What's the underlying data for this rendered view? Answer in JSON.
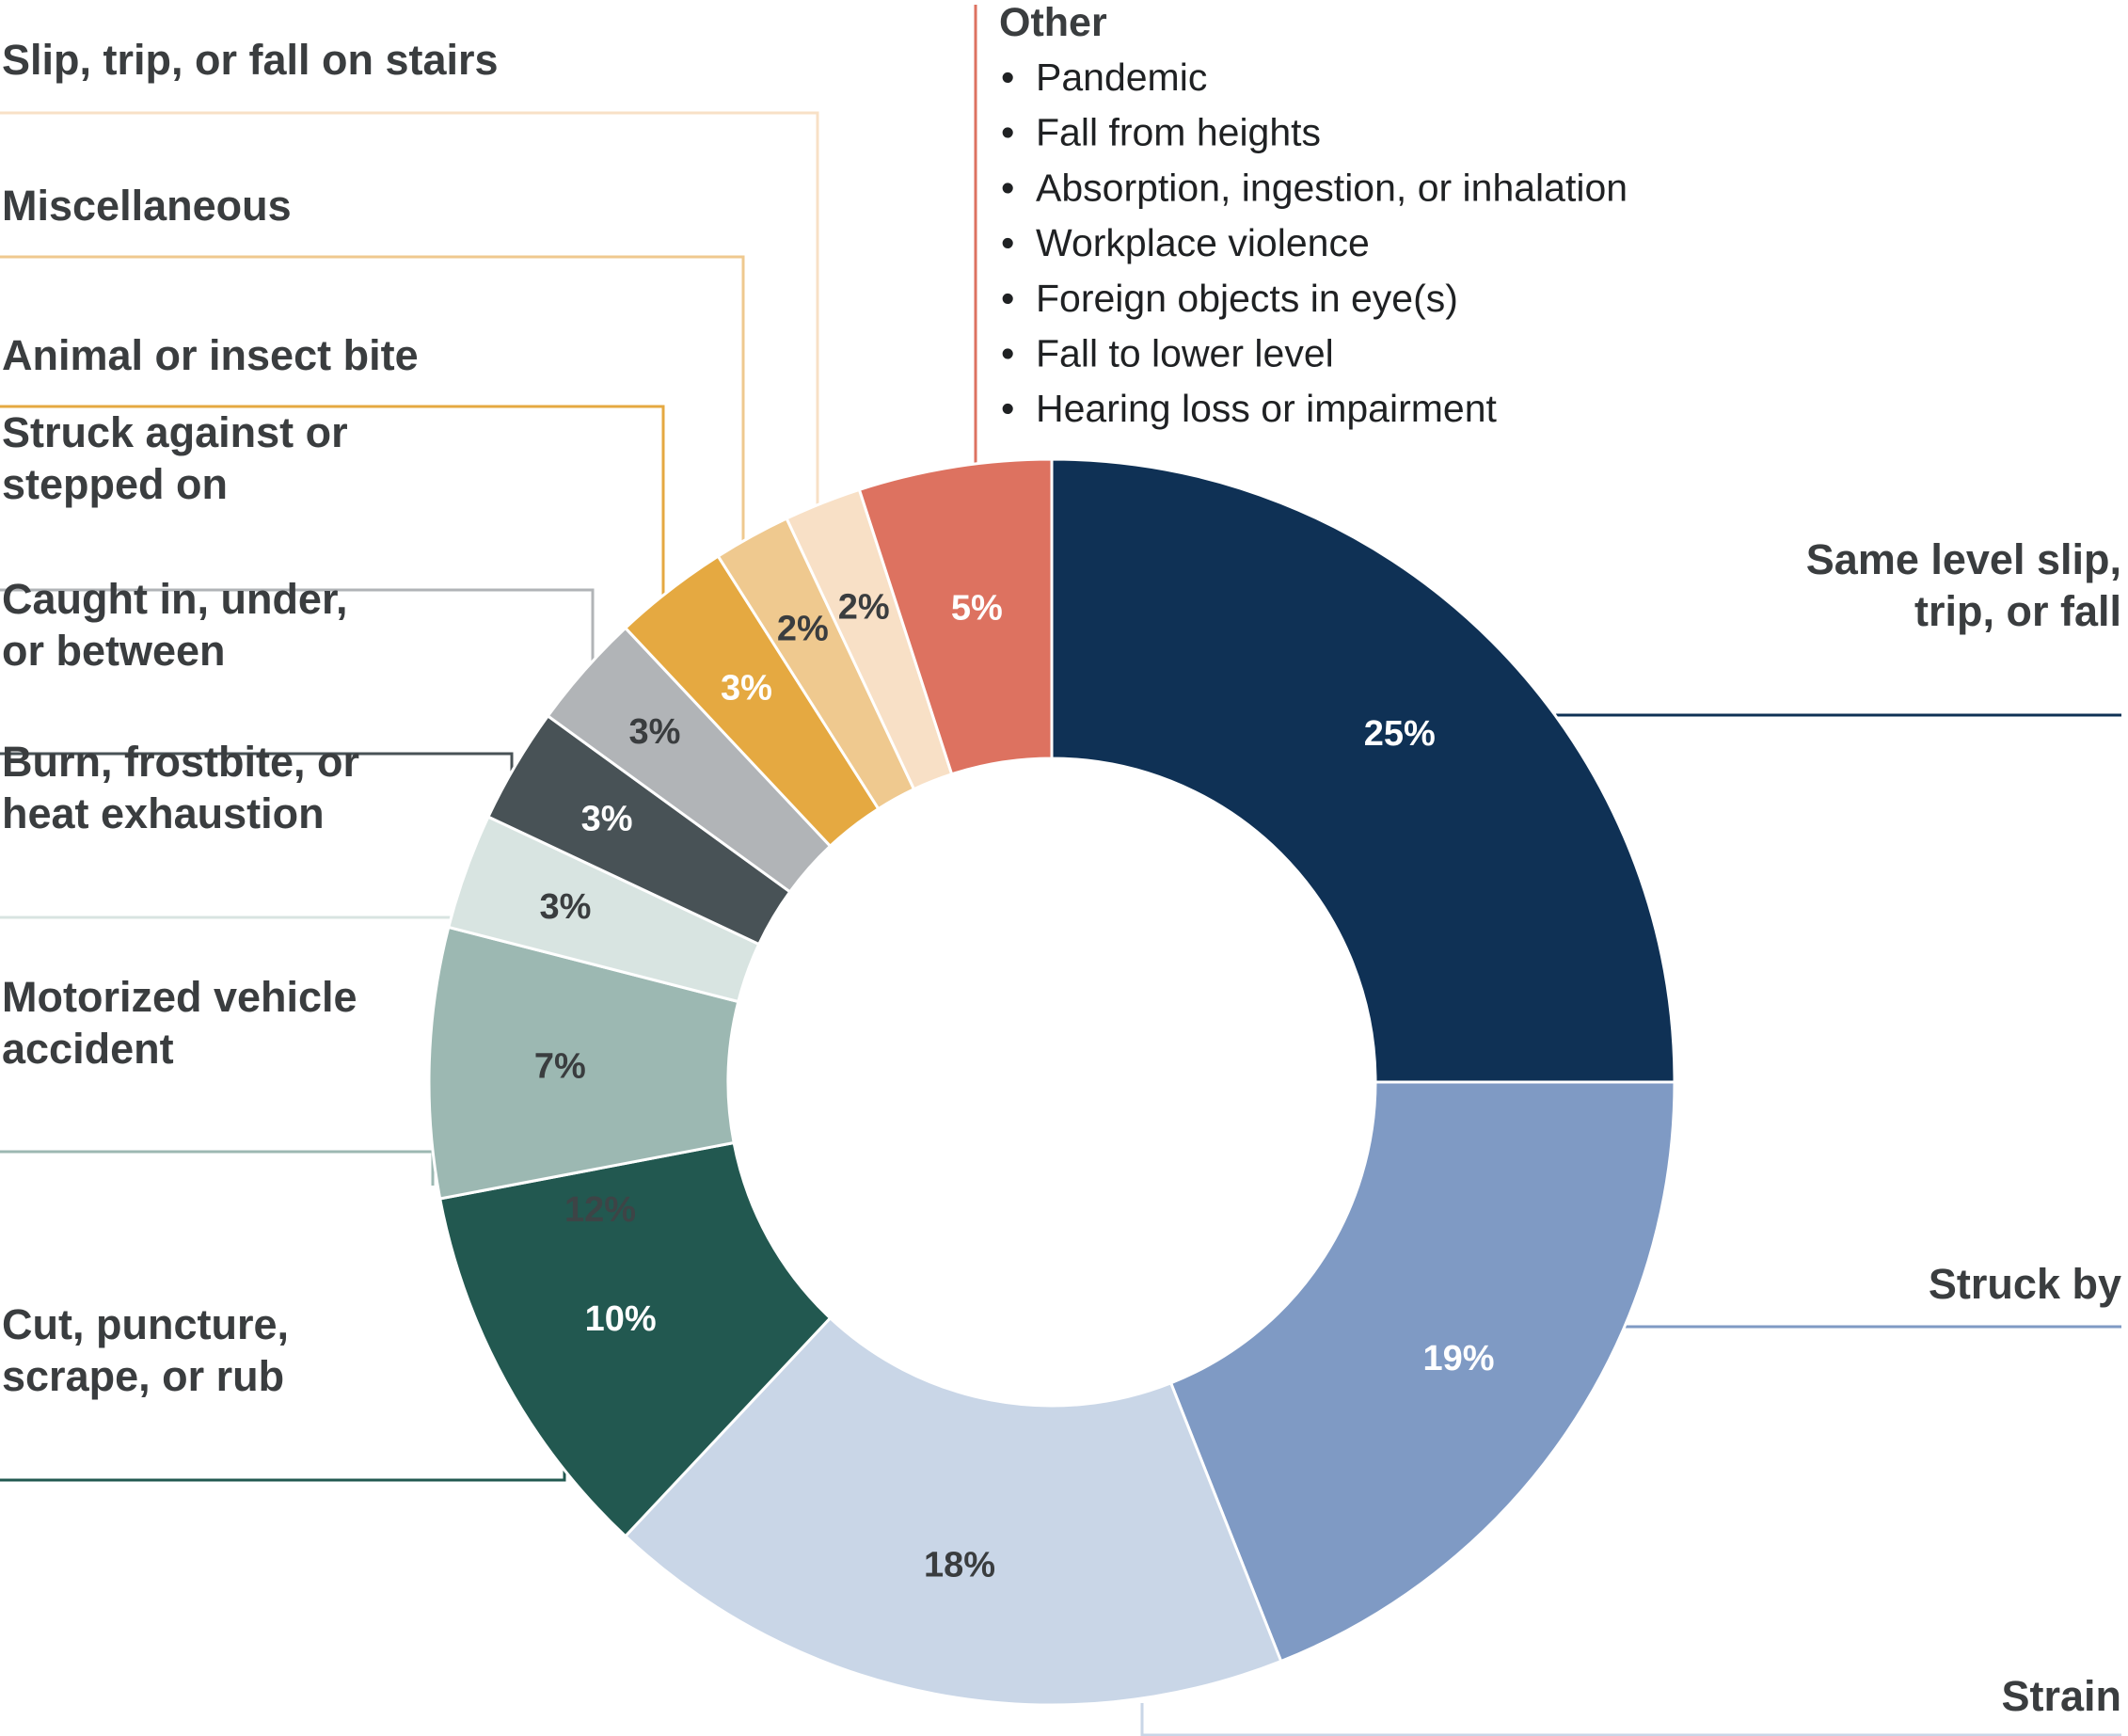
{
  "chart_data": {
    "type": "pie",
    "style": "donut",
    "title": "",
    "slices": [
      {
        "label": [
          "Same level slip,",
          "trip, or fall"
        ],
        "value": 25,
        "value_label": "25%",
        "color": "#0f3155",
        "text_color": "#ffffff"
      },
      {
        "label": [
          "Struck by"
        ],
        "value": 19,
        "value_label": "19%",
        "color": "#7f9ac4",
        "text_color": "#ffffff"
      },
      {
        "label": [
          "Strain"
        ],
        "value": 18,
        "value_label": "18%",
        "color": "#c9d6e7",
        "text_color": "#3a3d3f"
      },
      {
        "label": [
          "Cut, puncture,",
          "scrape, or rub"
        ],
        "value": 10,
        "value_label": "10%",
        "color": "#225850",
        "text_color": "#ffffff"
      },
      {
        "label": [
          "Motorized vehicle",
          "accident"
        ],
        "value": 7,
        "value_label": "7%",
        "color": "#9cb8b2",
        "text_color": "#3a3d3f"
      },
      {
        "label": [
          "Burn, frostbite, or",
          "heat exhaustion"
        ],
        "value": 3,
        "value_label": "3%",
        "color": "#d8e4e1",
        "text_color": "#3a3d3f"
      },
      {
        "label": [
          "Caught in, under,",
          "or between"
        ],
        "value": 3,
        "value_label": "3%",
        "color": "#485256",
        "text_color": "#ffffff"
      },
      {
        "label": [
          "Struck against or",
          "stepped on"
        ],
        "value": 3,
        "value_label": "3%",
        "color": "#b1b4b7",
        "text_color": "#3a3d3f"
      },
      {
        "label": [
          "Animal or insect bite"
        ],
        "value": 3,
        "value_label": "3%",
        "color": "#e5a941",
        "text_color": "#ffffff"
      },
      {
        "label": [
          "Miscellaneous"
        ],
        "value": 2,
        "value_label": "2%",
        "color": "#efc98f",
        "text_color": "#3a3d3f"
      },
      {
        "label": [
          "Slip, trip, or fall on stairs"
        ],
        "value": 2,
        "value_label": "2%",
        "color": "#f8e0c6",
        "text_color": "#3a3d3f"
      },
      {
        "label": [
          "Other"
        ],
        "value": 5,
        "value_label": "5%",
        "color": "#dd7260",
        "text_color": "#ffffff"
      }
    ],
    "stray_label": {
      "text": "12%",
      "color": "#3d4446"
    },
    "other_breakdown": {
      "title": "Other",
      "bullet": "•",
      "items": [
        "Pandemic",
        "Fall from heights",
        "Absorption, ingestion, or inhalation",
        "Workplace violence",
        "Foreign objects in eye(s)",
        "Fall to lower level",
        "Hearing loss or impairment"
      ]
    }
  }
}
